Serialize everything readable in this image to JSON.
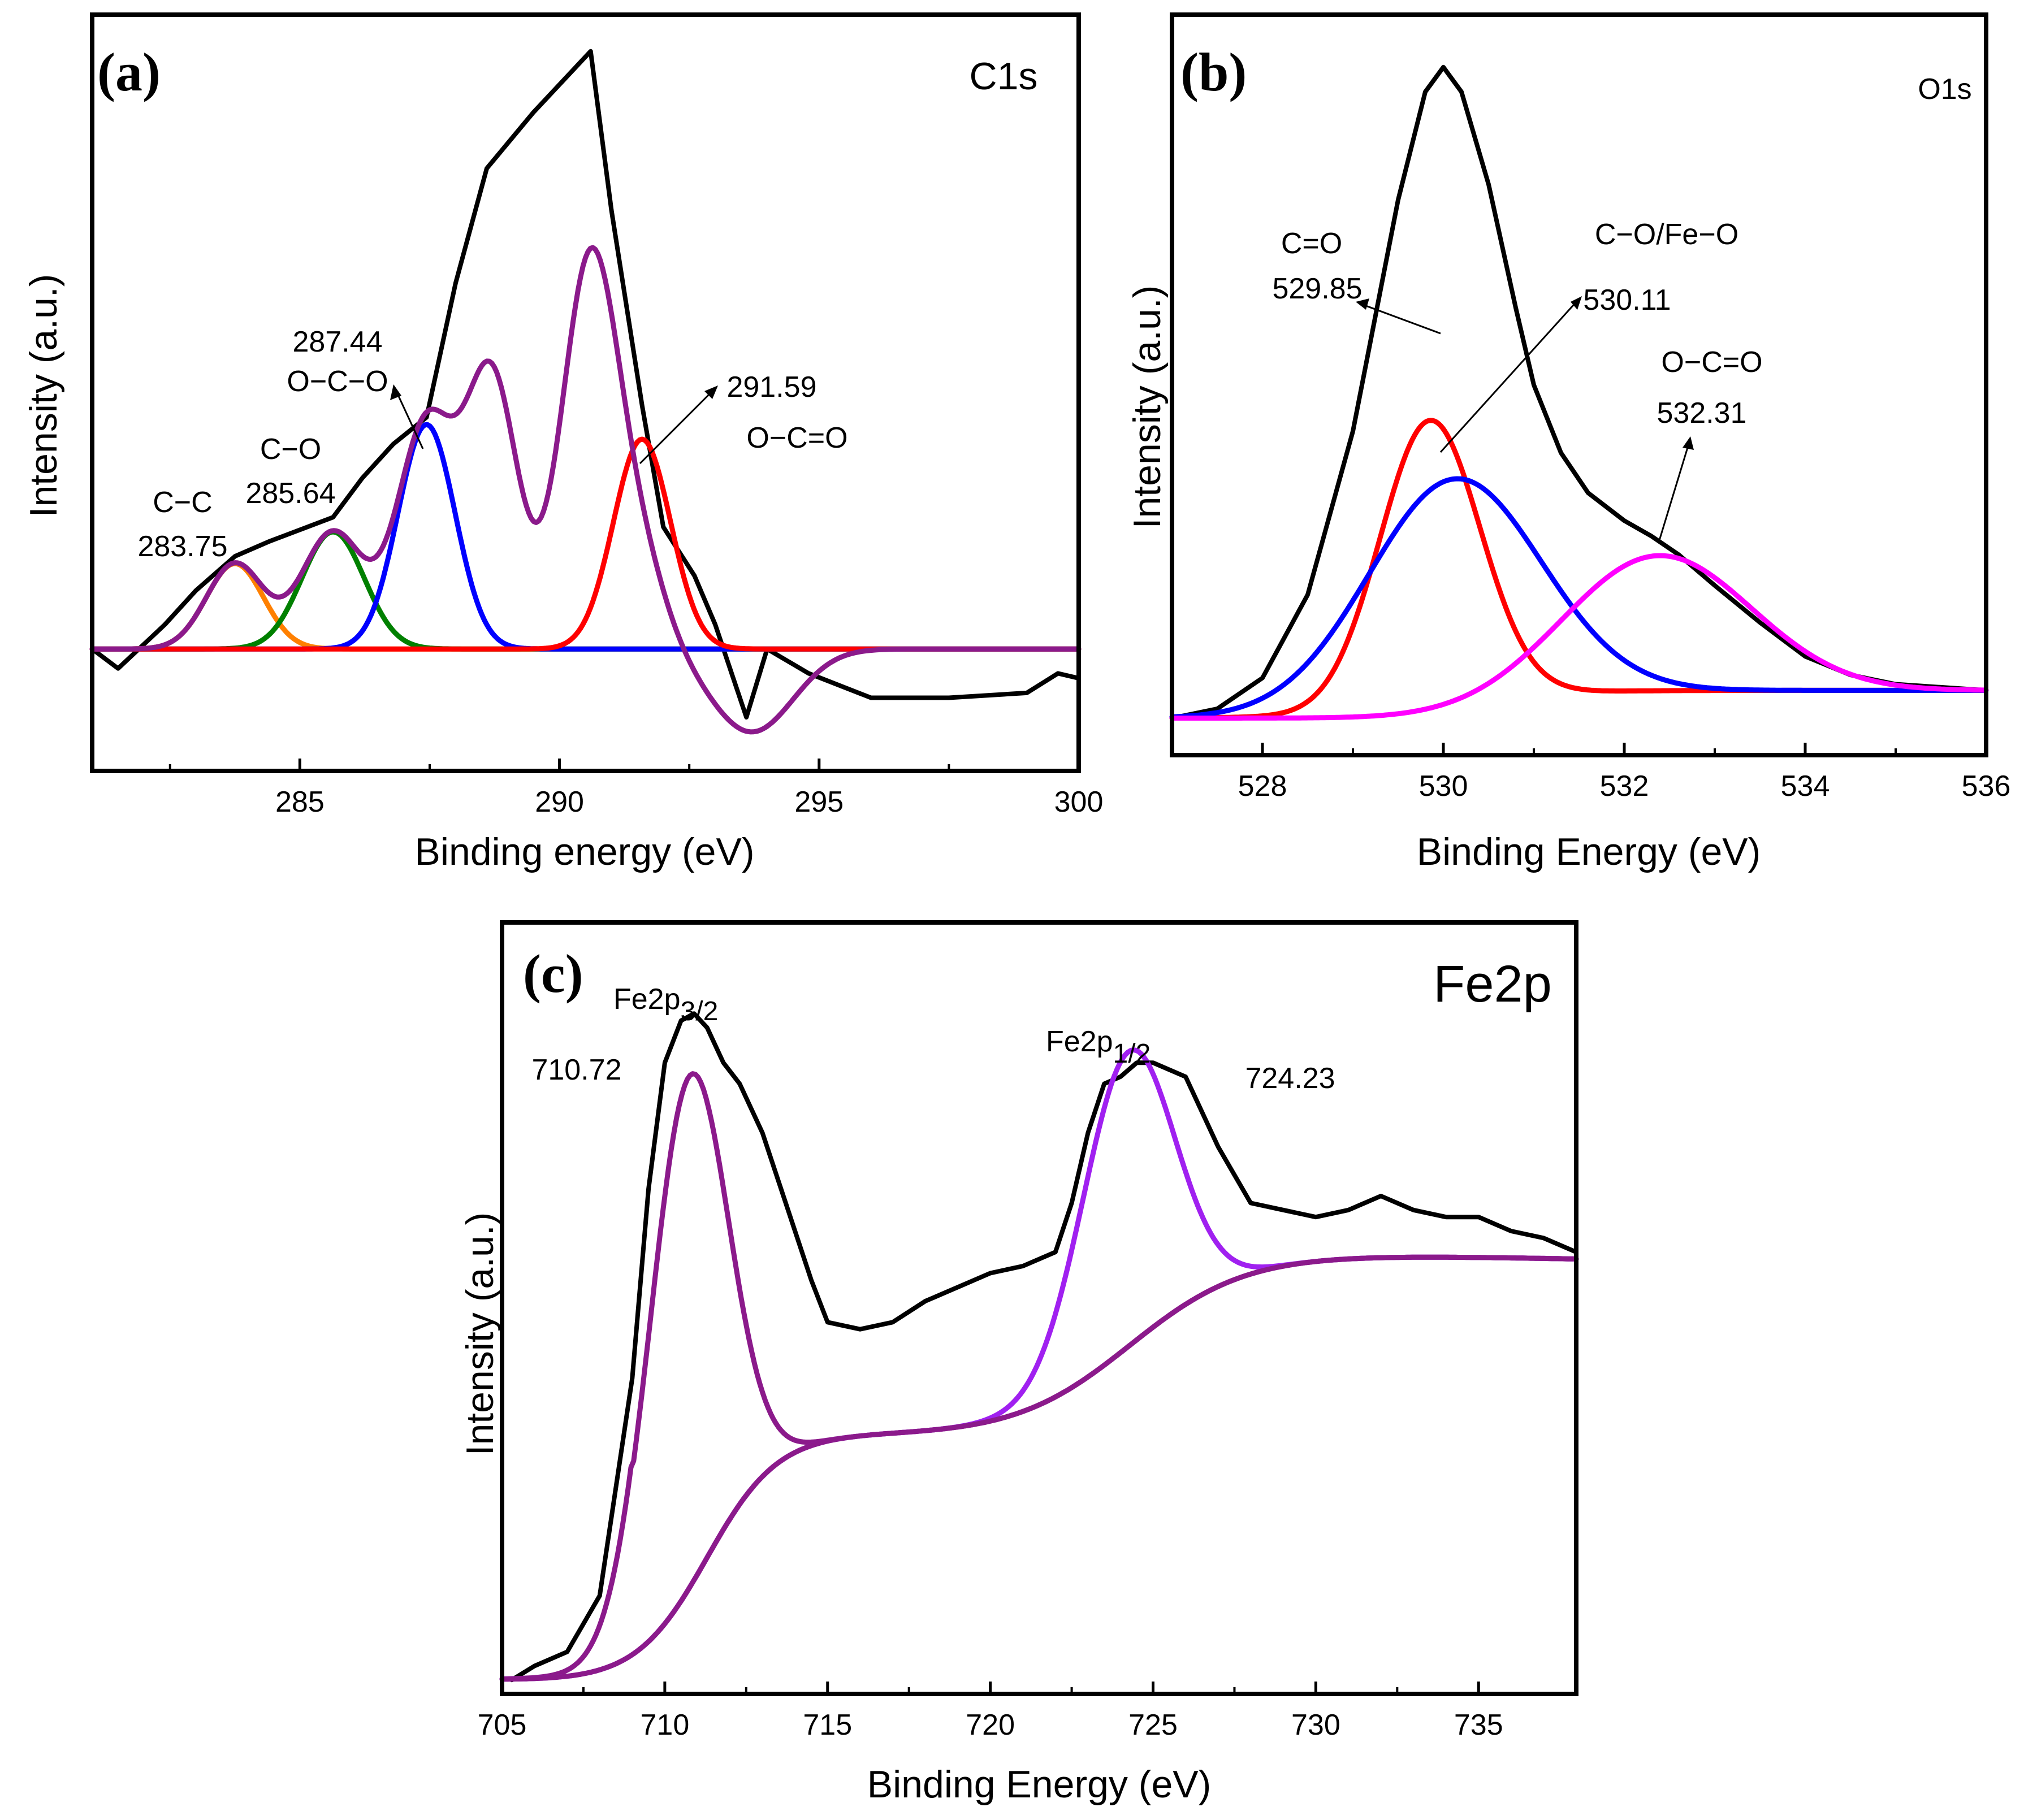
{
  "chart_data": [
    {
      "type": "line",
      "panel": "(a)",
      "title": "C1s",
      "xlabel": "Binding energy (eV)",
      "ylabel": "Intensity (a.u.)",
      "xlim": [
        281,
        300
      ],
      "ylim": [
        -0.5,
        2.6
      ],
      "xticks": [
        285,
        290,
        295,
        300
      ],
      "grid": false,
      "series": [
        {
          "name": "raw",
          "color": "#000000",
          "x": [
            281.0,
            281.5,
            282.4,
            283.0,
            283.75,
            284.4,
            285.64,
            286.2,
            286.8,
            287.44,
            288.0,
            288.6,
            289.5,
            290.6,
            291.0,
            291.59,
            292.0,
            292.6,
            293.0,
            293.6,
            294.0,
            294.8,
            296.0,
            296.6,
            297.5,
            299.0,
            299.6,
            300.0
          ],
          "y": [
            0.0,
            -0.08,
            0.1,
            0.24,
            0.38,
            0.44,
            0.54,
            0.7,
            0.84,
            0.95,
            1.5,
            1.97,
            2.2,
            2.45,
            1.8,
            1.0,
            0.5,
            0.3,
            0.1,
            -0.28,
            0.0,
            -0.1,
            -0.2,
            -0.2,
            -0.2,
            -0.18,
            -0.1,
            -0.12
          ]
        },
        {
          "name": "C-C",
          "color": "#ff8000",
          "peak": {
            "center": 283.75,
            "height": 0.35,
            "sigma": 0.55
          }
        },
        {
          "name": "C-O",
          "color": "#008000",
          "peak": {
            "center": 285.64,
            "height": 0.48,
            "sigma": 0.6
          }
        },
        {
          "name": "O-C-O",
          "color": "#0000ff",
          "peak": {
            "center": 287.44,
            "height": 0.92,
            "sigma": 0.55
          }
        },
        {
          "name": "O-C=O",
          "color": "#ff0000",
          "peak": {
            "center": 291.59,
            "height": 0.86,
            "sigma": 0.55
          }
        },
        {
          "name": "fit",
          "color": "#8b1a8b",
          "peaks": [
            {
              "center": 283.75,
              "height": 0.35,
              "sigma": 0.55
            },
            {
              "center": 285.64,
              "height": 0.48,
              "sigma": 0.6
            },
            {
              "center": 287.44,
              "height": 0.92,
              "sigma": 0.55
            },
            {
              "center": 288.7,
              "height": 1.1,
              "sigma": 0.5
            },
            {
              "center": 290.6,
              "height": 1.6,
              "sigma": 0.55
            },
            {
              "center": 291.59,
              "height": 0.3,
              "sigma": 0.5
            },
            {
              "center": 293.7,
              "height": -0.34,
              "sigma": 0.8
            }
          ]
        }
      ],
      "annotations": [
        {
          "lines": [
            "C−C",
            "283.75"
          ]
        },
        {
          "lines": [
            "C−O",
            "285.64"
          ]
        },
        {
          "lines": [
            "287.44",
            "O−C−O"
          ]
        },
        {
          "lines": [
            "291.59",
            "O−C=O"
          ]
        }
      ]
    },
    {
      "type": "line",
      "panel": "(b)",
      "title": "O1s",
      "xlabel": "Binding Energy (eV)",
      "ylabel": "Intensity (a.u.)",
      "xlim": [
        527,
        536
      ],
      "ylim": [
        -0.1,
        2.3
      ],
      "xticks": [
        528,
        530,
        532,
        534,
        536
      ],
      "grid": false,
      "series": [
        {
          "name": "raw",
          "color": "#000000",
          "x": [
            527.0,
            527.5,
            528.0,
            528.5,
            529.0,
            529.5,
            529.8,
            530.0,
            530.2,
            530.5,
            530.8,
            531.0,
            531.3,
            531.6,
            532.0,
            532.3,
            532.6,
            533.0,
            533.5,
            534.0,
            534.5,
            535.0,
            535.5,
            536.0
          ],
          "y": [
            0.02,
            0.05,
            0.15,
            0.42,
            0.95,
            1.7,
            2.05,
            2.13,
            2.05,
            1.75,
            1.35,
            1.1,
            0.88,
            0.75,
            0.66,
            0.61,
            0.55,
            0.45,
            0.33,
            0.22,
            0.16,
            0.13,
            0.12,
            0.11
          ]
        },
        {
          "name": "C=O",
          "color": "#ff0000",
          "peak": {
            "center": 529.85,
            "height": 0.92,
            "sigma": 0.55,
            "base": 0.11,
            "base_left": 0.02
          }
        },
        {
          "name": "C-O/Fe-O",
          "color": "#0000ff",
          "peak": {
            "center": 530.11,
            "height": 0.73,
            "sigma": 0.95,
            "base": 0.11,
            "base_left": 0.02
          }
        },
        {
          "name": "O-C=O",
          "color": "#ff00ff",
          "peak": {
            "center": 532.31,
            "height": 0.48,
            "sigma": 1.05,
            "base": 0.11,
            "base_left": 0.02
          }
        }
      ],
      "annotations": [
        {
          "lines": [
            "C=O",
            "529.85"
          ]
        },
        {
          "lines": [
            "C−O/Fe−O",
            "530.11"
          ]
        },
        {
          "lines": [
            "O−C=O",
            "532.31"
          ]
        }
      ]
    },
    {
      "type": "line",
      "panel": "(c)",
      "title": "Fe2p",
      "xlabel": "Binding Energy (eV)",
      "ylabel": "Intensity (a.u.)",
      "xlim": [
        705,
        738
      ],
      "ylim": [
        0,
        1.1
      ],
      "xticks": [
        705,
        710,
        715,
        720,
        725,
        730,
        735
      ],
      "grid": false,
      "series": [
        {
          "name": "raw",
          "color": "#000000",
          "x": [
            705.3,
            706.0,
            707.0,
            708.0,
            709.0,
            709.5,
            710.0,
            710.5,
            710.9,
            711.3,
            711.8,
            712.3,
            713.0,
            713.5,
            714.0,
            714.5,
            715.0,
            716.0,
            717.0,
            718.0,
            719.0,
            720.0,
            721.0,
            722.0,
            722.5,
            723.0,
            723.5,
            724.0,
            724.5,
            725.0,
            726.0,
            727.0,
            728.0,
            729.0,
            730.0,
            731.0,
            732.0,
            733.0,
            734.0,
            735.0,
            736.0,
            737.0,
            738.0
          ],
          "y": [
            0.02,
            0.04,
            0.06,
            0.14,
            0.45,
            0.72,
            0.9,
            0.96,
            0.97,
            0.95,
            0.9,
            0.87,
            0.8,
            0.73,
            0.66,
            0.59,
            0.53,
            0.52,
            0.53,
            0.56,
            0.58,
            0.6,
            0.61,
            0.63,
            0.7,
            0.8,
            0.87,
            0.88,
            0.9,
            0.9,
            0.88,
            0.78,
            0.7,
            0.69,
            0.68,
            0.69,
            0.71,
            0.69,
            0.68,
            0.68,
            0.66,
            0.65,
            0.63
          ]
        },
        {
          "name": "Fe2p3/2 fit",
          "color": "#8b1a8b",
          "peak": {
            "center": 710.72,
            "height": 0.73,
            "sigma": 1.2
          }
        },
        {
          "name": "Fe2p1/2 fit",
          "color": "#a020f0",
          "peak": {
            "center": 724.23,
            "height": 0.42,
            "sigma": 1.4
          }
        },
        {
          "name": "background",
          "color": "#8b1a8b"
        }
      ],
      "annotations": [
        {
          "label": "Fe2p",
          "sub": "3/2",
          "value": "710.72"
        },
        {
          "label": "Fe2p",
          "sub": "1/2",
          "value": "724.23"
        }
      ]
    }
  ]
}
